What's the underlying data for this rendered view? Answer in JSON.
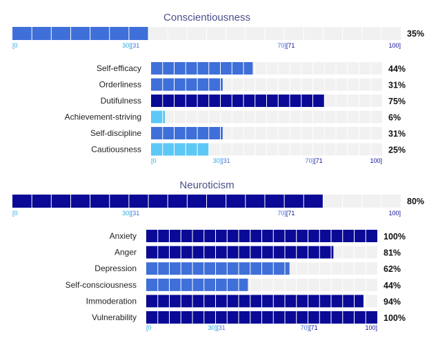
{
  "colors": {
    "track": "#f1f1f1",
    "low": "#5bc8f5",
    "mid": "#3f6fd8",
    "high": "#0a0a96",
    "title": "#4a4e8a",
    "tick_low": "#29a8e0",
    "tick_mid": "#3f6fd8",
    "tick_high": "#0a0a96"
  },
  "tick_labels": [
    "[0",
    "30][31",
    "70][71",
    "100]"
  ],
  "chart_data": [
    {
      "type": "bar",
      "title": "Conscientiousness",
      "overall": {
        "value": 35,
        "label": "35%"
      },
      "categories": [
        "Self-efficacy",
        "Orderliness",
        "Dutifulness",
        "Achievement-striving",
        "Self-discipline",
        "Cautiousness"
      ],
      "values": [
        44,
        31,
        75,
        6,
        31,
        25
      ],
      "value_labels": [
        "44%",
        "31%",
        "75%",
        "6%",
        "31%",
        "25%"
      ],
      "xlim": [
        0,
        100
      ],
      "bands": [
        [
          0,
          30
        ],
        [
          31,
          70
        ],
        [
          71,
          100
        ]
      ]
    },
    {
      "type": "bar",
      "title": "Neuroticism",
      "overall": {
        "value": 80,
        "label": "80%"
      },
      "categories": [
        "Anxiety",
        "Anger",
        "Depression",
        "Self-consciousness",
        "Immoderation",
        "Vulnerability"
      ],
      "values": [
        100,
        81,
        62,
        44,
        94,
        100
      ],
      "value_labels": [
        "100%",
        "81%",
        "62%",
        "44%",
        "94%",
        "100%"
      ],
      "xlim": [
        0,
        100
      ],
      "bands": [
        [
          0,
          30
        ],
        [
          31,
          70
        ],
        [
          71,
          100
        ]
      ]
    }
  ]
}
